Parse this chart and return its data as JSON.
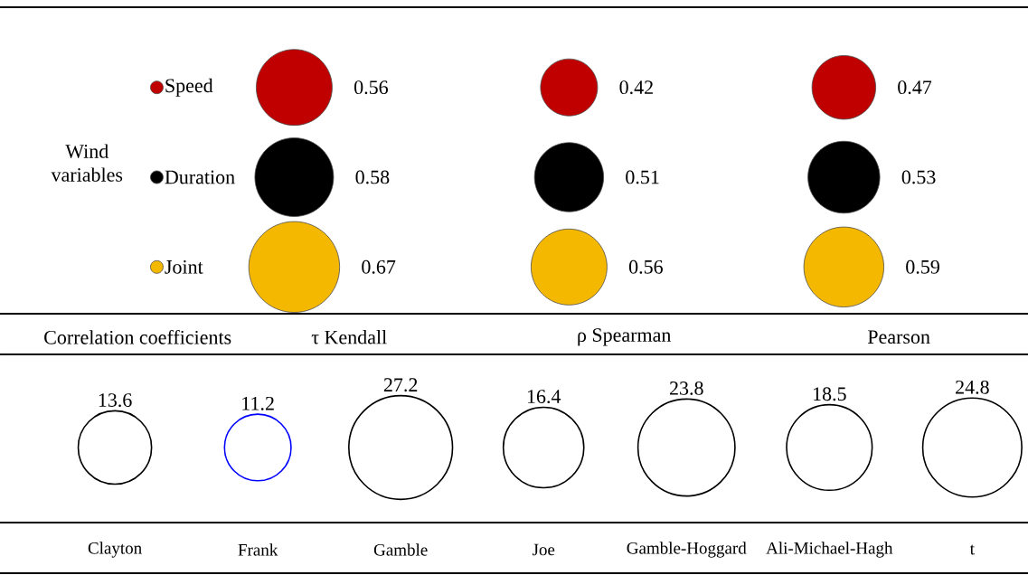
{
  "chart_data": [
    {
      "type": "other",
      "ylabel": "Wind variables",
      "xlabel": "Correlation coefficients",
      "categories": [
        "τ Kendall",
        "ρ Spearman",
        "Pearson"
      ],
      "series": [
        {
          "name": "Speed",
          "color": "#c00000",
          "values": [
            0.56,
            0.42,
            0.47
          ]
        },
        {
          "name": "Duration",
          "color": "#000000",
          "values": [
            0.58,
            0.51,
            0.53
          ]
        },
        {
          "name": "Joint",
          "color": "#f5b800",
          "values": [
            0.67,
            0.56,
            0.59
          ]
        }
      ],
      "legend": "left",
      "data_labels": true
    },
    {
      "type": "other",
      "categories": [
        "Clayton",
        "Frank",
        "Gamble",
        "Joe",
        "Gamble-Hoggard",
        "Ali-Michael-Hagh",
        "t"
      ],
      "values": [
        13.6,
        11.2,
        27.2,
        16.4,
        23.8,
        18.5,
        24.8
      ],
      "colors": [
        "#000000",
        "#0000ff",
        "#000000",
        "#000000",
        "#000000",
        "#000000",
        "#000000"
      ],
      "data_labels": true
    }
  ]
}
